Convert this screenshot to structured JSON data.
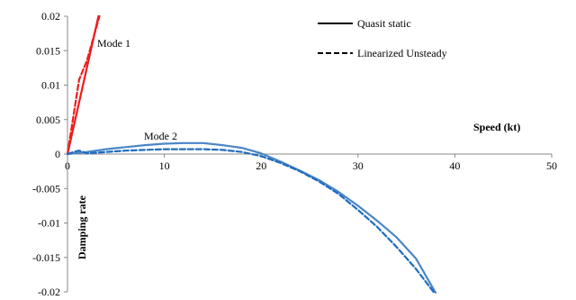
{
  "chart_data": {
    "type": "line",
    "xlabel": "Speed  (kt)",
    "ylabel": "Damping  rate",
    "xlim": [
      0,
      50
    ],
    "ylim": [
      -0.02,
      0.02
    ],
    "x_ticks": [
      "0",
      "10",
      "20",
      "30",
      "40",
      "50"
    ],
    "y_ticks": [
      "0.02",
      "0.015",
      "0.01",
      "0.005",
      "0",
      "-0.005",
      "-0.01",
      "-0.015",
      "-0.02"
    ],
    "grid": false,
    "legend": {
      "position": "top-right",
      "entries": [
        {
          "label": "Quasit static",
          "style": "solid"
        },
        {
          "label": "Linearized Unsteady",
          "style": "dashed"
        }
      ]
    },
    "annotations": [
      {
        "text": "Mode 1",
        "near_series": "Mode 1"
      },
      {
        "text": "Mode 2",
        "near_series": "Mode 2"
      }
    ],
    "series": [
      {
        "group": "Mode 1",
        "style": "solid",
        "color": "#ee1c1c",
        "points": [
          [
            0,
            0
          ],
          [
            3.2,
            0.02
          ]
        ]
      },
      {
        "group": "Mode 1",
        "style": "dashed",
        "color": "#ee1c1c",
        "points": [
          [
            0,
            0
          ],
          [
            1.2,
            0.0108
          ],
          [
            2,
            0.0135
          ],
          [
            3.3,
            0.02
          ]
        ]
      },
      {
        "group": "Mode 2",
        "style": "solid",
        "color": "#4a86c6",
        "points": [
          [
            0,
            0
          ],
          [
            2,
            0.0003
          ],
          [
            4,
            0.0007
          ],
          [
            6,
            0.001
          ],
          [
            8,
            0.0013
          ],
          [
            10,
            0.0015
          ],
          [
            12,
            0.0016
          ],
          [
            14,
            0.0016
          ],
          [
            16,
            0.0013
          ],
          [
            18,
            0.0009
          ],
          [
            20,
            0.0001
          ],
          [
            22,
            -0.0011
          ],
          [
            24,
            -0.0024
          ],
          [
            26,
            -0.0038
          ],
          [
            28,
            -0.0055
          ],
          [
            30,
            -0.0075
          ],
          [
            32,
            -0.0097
          ],
          [
            34,
            -0.0121
          ],
          [
            36,
            -0.0152
          ],
          [
            38,
            -0.0201
          ]
        ]
      },
      {
        "group": "Mode 2",
        "style": "dashed",
        "color": "#1f6cc0",
        "points": [
          [
            0,
            0
          ],
          [
            0.6,
            0.0003
          ],
          [
            1.2,
            0.0005
          ],
          [
            1.6,
            0.0003
          ],
          [
            2,
            0.0001
          ],
          [
            4,
            0.0003
          ],
          [
            6,
            0.0005
          ],
          [
            8,
            0.0006
          ],
          [
            10,
            0.0007
          ],
          [
            12,
            0.0007
          ],
          [
            14,
            0.0007
          ],
          [
            16,
            0.0006
          ],
          [
            18,
            0.0003
          ],
          [
            20,
            -0.0003
          ],
          [
            22,
            -0.0013
          ],
          [
            24,
            -0.0025
          ],
          [
            26,
            -0.004
          ],
          [
            28,
            -0.0058
          ],
          [
            30,
            -0.0081
          ],
          [
            32,
            -0.0106
          ],
          [
            34,
            -0.0135
          ],
          [
            36,
            -0.0167
          ],
          [
            37.8,
            -0.02
          ]
        ]
      }
    ]
  }
}
